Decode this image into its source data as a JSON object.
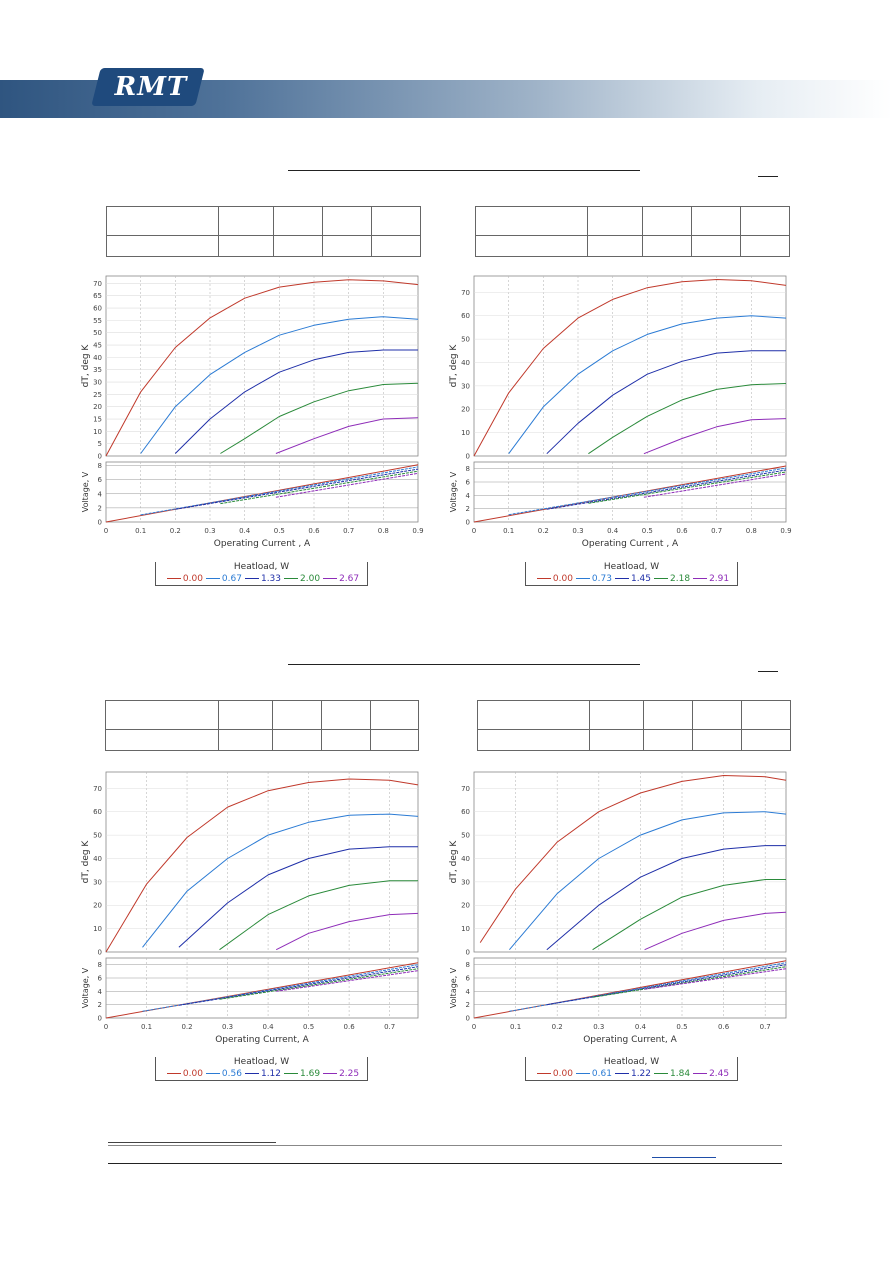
{
  "brand": {
    "logo_text": "RMT",
    "banner_color": "#2f5580"
  },
  "curve_colors": [
    "#c0392b",
    "#2b7bd4",
    "#1f2fa8",
    "#2a8a3a",
    "#8e2cb8"
  ],
  "panels": [
    {
      "id": "p1",
      "axis_label_x": "Operating Current , A",
      "axis_label_dt": "dT, deg K",
      "axis_label_v": "Voltage, V",
      "x_ticks": [
        "0",
        "0.1",
        "0.2",
        "0.3",
        "0.4",
        "0.5",
        "0.6",
        "0.7",
        "0.8",
        "0.9"
      ],
      "dt_ticks": [
        "0",
        "5",
        "10",
        "15",
        "20",
        "25",
        "30",
        "35",
        "40",
        "45",
        "50",
        "55",
        "60",
        "65",
        "70"
      ],
      "v_ticks": [
        "0",
        "2",
        "4",
        "6",
        "8"
      ],
      "legend_title": "Heatload, W",
      "legend": [
        "0.00",
        "0.67",
        "1.33",
        "2.00",
        "2.67"
      ]
    },
    {
      "id": "p2",
      "axis_label_x": "Operating Current , A",
      "axis_label_dt": "dT, deg K",
      "axis_label_v": "Voltage, V",
      "x_ticks": [
        "0",
        "0.1",
        "0.2",
        "0.3",
        "0.4",
        "0.5",
        "0.6",
        "0.7",
        "0.8",
        "0.9"
      ],
      "dt_ticks": [
        "0",
        "10",
        "20",
        "30",
        "40",
        "50",
        "60",
        "70"
      ],
      "v_ticks": [
        "0",
        "2",
        "4",
        "6",
        "8"
      ],
      "legend_title": "Heatload, W",
      "legend": [
        "0.00",
        "0.73",
        "1.45",
        "2.18",
        "2.91"
      ]
    },
    {
      "id": "p3",
      "axis_label_x": "Operating Current, A",
      "axis_label_dt": "dT, deg K",
      "axis_label_v": "Voltage, V",
      "x_ticks": [
        "0",
        "0.1",
        "0.2",
        "0.3",
        "0.4",
        "0.5",
        "0.6",
        "0.7"
      ],
      "dt_ticks": [
        "0",
        "10",
        "20",
        "30",
        "40",
        "50",
        "60",
        "70"
      ],
      "v_ticks": [
        "0",
        "2",
        "4",
        "6",
        "8"
      ],
      "legend_title": "Heatload, W",
      "legend": [
        "0.00",
        "0.56",
        "1.12",
        "1.69",
        "2.25"
      ]
    },
    {
      "id": "p4",
      "axis_label_x": "Operating Current, A",
      "axis_label_dt": "dT, deg K",
      "axis_label_v": "Voltage, V",
      "x_ticks": [
        "0",
        "0.1",
        "0.2",
        "0.3",
        "0.4",
        "0.5",
        "0.6",
        "0.7"
      ],
      "dt_ticks": [
        "0",
        "10",
        "20",
        "30",
        "40",
        "50",
        "60",
        "70"
      ],
      "v_ticks": [
        "0",
        "2",
        "4",
        "6",
        "8"
      ],
      "legend_title": "Heatload, W",
      "legend": [
        "0.00",
        "0.61",
        "1.22",
        "1.84",
        "2.45"
      ]
    }
  ],
  "chart_data": [
    {
      "type": "line",
      "xlim": [
        0,
        0.9
      ],
      "ylim_dt": [
        0,
        73
      ],
      "ylim_v": [
        0,
        8.5
      ],
      "xlabel": "Operating Current , A",
      "ylabel": "dT, deg K",
      "ylabel2": "Voltage, V",
      "legend_title": "Heatload, W",
      "series": [
        {
          "name": "0.00",
          "x0": 0.0,
          "dt": [
            [
              0,
              0
            ],
            [
              0.1,
              26
            ],
            [
              0.2,
              44
            ],
            [
              0.3,
              56
            ],
            [
              0.4,
              64
            ],
            [
              0.5,
              68.5
            ],
            [
              0.6,
              70.5
            ],
            [
              0.7,
              71.5
            ],
            [
              0.8,
              71
            ],
            [
              0.9,
              69.5
            ]
          ],
          "v": [
            [
              0,
              0
            ],
            [
              0.9,
              8.1
            ]
          ]
        },
        {
          "name": "0.67",
          "x0": 0.1,
          "dt": [
            [
              0.1,
              1
            ],
            [
              0.2,
              20
            ],
            [
              0.3,
              33
            ],
            [
              0.4,
              42
            ],
            [
              0.5,
              49
            ],
            [
              0.6,
              53
            ],
            [
              0.7,
              55.5
            ],
            [
              0.8,
              56.5
            ],
            [
              0.9,
              55.5
            ]
          ],
          "v": [
            [
              0.1,
              1
            ],
            [
              0.9,
              7.8
            ]
          ]
        },
        {
          "name": "1.33",
          "x0": 0.2,
          "dt": [
            [
              0.2,
              1
            ],
            [
              0.3,
              15
            ],
            [
              0.4,
              26
            ],
            [
              0.5,
              34
            ],
            [
              0.6,
              39
            ],
            [
              0.7,
              42
            ],
            [
              0.8,
              43
            ],
            [
              0.9,
              43
            ]
          ],
          "v": [
            [
              0.2,
              1.8
            ],
            [
              0.9,
              7.5
            ]
          ]
        },
        {
          "name": "2.00",
          "x0": 0.33,
          "dt": [
            [
              0.33,
              1
            ],
            [
              0.4,
              7
            ],
            [
              0.5,
              16
            ],
            [
              0.6,
              22
            ],
            [
              0.7,
              26.5
            ],
            [
              0.8,
              29
            ],
            [
              0.9,
              29.5
            ]
          ],
          "v": [
            [
              0.33,
              2.6
            ],
            [
              0.9,
              7.2
            ]
          ]
        },
        {
          "name": "2.67",
          "x0": 0.49,
          "dt": [
            [
              0.49,
              1
            ],
            [
              0.6,
              7
            ],
            [
              0.7,
              12
            ],
            [
              0.8,
              15
            ],
            [
              0.9,
              15.5
            ]
          ],
          "v": [
            [
              0.49,
              3.5
            ],
            [
              0.9,
              6.9
            ]
          ]
        }
      ]
    },
    {
      "type": "line",
      "xlim": [
        0,
        0.9
      ],
      "ylim_dt": [
        0,
        77
      ],
      "ylim_v": [
        0,
        9
      ],
      "xlabel": "Operating Current , A",
      "ylabel": "dT, deg K",
      "ylabel2": "Voltage, V",
      "legend_title": "Heatload, W",
      "series": [
        {
          "name": "0.00",
          "x0": 0.0,
          "dt": [
            [
              0,
              0
            ],
            [
              0.1,
              27
            ],
            [
              0.2,
              46
            ],
            [
              0.3,
              59
            ],
            [
              0.4,
              67
            ],
            [
              0.5,
              72
            ],
            [
              0.6,
              74.5
            ],
            [
              0.7,
              75.5
            ],
            [
              0.8,
              75
            ],
            [
              0.9,
              73
            ]
          ],
          "v": [
            [
              0,
              0
            ],
            [
              0.9,
              8.4
            ]
          ]
        },
        {
          "name": "0.73",
          "x0": 0.1,
          "dt": [
            [
              0.1,
              1
            ],
            [
              0.2,
              21
            ],
            [
              0.3,
              35
            ],
            [
              0.4,
              45
            ],
            [
              0.5,
              52
            ],
            [
              0.6,
              56.5
            ],
            [
              0.7,
              59
            ],
            [
              0.8,
              60
            ],
            [
              0.9,
              59
            ]
          ],
          "v": [
            [
              0.1,
              1.1
            ],
            [
              0.9,
              8.1
            ]
          ]
        },
        {
          "name": "1.45",
          "x0": 0.21,
          "dt": [
            [
              0.21,
              1
            ],
            [
              0.3,
              14
            ],
            [
              0.4,
              26
            ],
            [
              0.5,
              35
            ],
            [
              0.6,
              40.5
            ],
            [
              0.7,
              44
            ],
            [
              0.8,
              45
            ],
            [
              0.9,
              45
            ]
          ],
          "v": [
            [
              0.21,
              1.9
            ],
            [
              0.9,
              7.8
            ]
          ]
        },
        {
          "name": "2.18",
          "x0": 0.33,
          "dt": [
            [
              0.33,
              1
            ],
            [
              0.4,
              8
            ],
            [
              0.5,
              17
            ],
            [
              0.6,
              24
            ],
            [
              0.7,
              28.5
            ],
            [
              0.8,
              30.5
            ],
            [
              0.9,
              31
            ]
          ],
          "v": [
            [
              0.33,
              2.8
            ],
            [
              0.9,
              7.5
            ]
          ]
        },
        {
          "name": "2.91",
          "x0": 0.49,
          "dt": [
            [
              0.49,
              1
            ],
            [
              0.6,
              7.5
            ],
            [
              0.7,
              12.5
            ],
            [
              0.8,
              15.5
            ],
            [
              0.9,
              16
            ]
          ],
          "v": [
            [
              0.49,
              3.7
            ],
            [
              0.9,
              7.2
            ]
          ]
        }
      ]
    },
    {
      "type": "line",
      "xlim": [
        0,
        0.77
      ],
      "ylim_dt": [
        0,
        77
      ],
      "ylim_v": [
        0,
        9
      ],
      "xlabel": "Operating Current, A",
      "ylabel": "dT, deg K",
      "ylabel2": "Voltage, V",
      "legend_title": "Heatload, W",
      "series": [
        {
          "name": "0.00",
          "x0": 0.0,
          "dt": [
            [
              0,
              0
            ],
            [
              0.1,
              29
            ],
            [
              0.2,
              49
            ],
            [
              0.3,
              62
            ],
            [
              0.4,
              69
            ],
            [
              0.5,
              72.5
            ],
            [
              0.6,
              74
            ],
            [
              0.7,
              73.5
            ],
            [
              0.77,
              71.5
            ]
          ],
          "v": [
            [
              0,
              0
            ],
            [
              0.77,
              8.3
            ]
          ]
        },
        {
          "name": "0.56",
          "x0": 0.09,
          "dt": [
            [
              0.09,
              2
            ],
            [
              0.2,
              26
            ],
            [
              0.3,
              40
            ],
            [
              0.4,
              50
            ],
            [
              0.5,
              55.5
            ],
            [
              0.6,
              58.5
            ],
            [
              0.7,
              59
            ],
            [
              0.77,
              58
            ]
          ],
          "v": [
            [
              0.09,
              1
            ],
            [
              0.77,
              8
            ]
          ]
        },
        {
          "name": "1.12",
          "x0": 0.18,
          "dt": [
            [
              0.18,
              2
            ],
            [
              0.3,
              21
            ],
            [
              0.4,
              33
            ],
            [
              0.5,
              40
            ],
            [
              0.6,
              44
            ],
            [
              0.7,
              45
            ],
            [
              0.77,
              45
            ]
          ],
          "v": [
            [
              0.18,
              1.9
            ],
            [
              0.77,
              7.7
            ]
          ]
        },
        {
          "name": "1.69",
          "x0": 0.28,
          "dt": [
            [
              0.28,
              1
            ],
            [
              0.4,
              16
            ],
            [
              0.5,
              24
            ],
            [
              0.6,
              28.5
            ],
            [
              0.7,
              30.5
            ],
            [
              0.77,
              30.5
            ]
          ],
          "v": [
            [
              0.28,
              2.8
            ],
            [
              0.77,
              7.4
            ]
          ]
        },
        {
          "name": "2.25",
          "x0": 0.42,
          "dt": [
            [
              0.42,
              1
            ],
            [
              0.5,
              8
            ],
            [
              0.6,
              13
            ],
            [
              0.7,
              16
            ],
            [
              0.77,
              16.5
            ]
          ],
          "v": [
            [
              0.42,
              4
            ],
            [
              0.77,
              7.1
            ]
          ]
        }
      ]
    },
    {
      "type": "line",
      "xlim": [
        0,
        0.75
      ],
      "ylim_dt": [
        0,
        77
      ],
      "ylim_v": [
        0,
        9
      ],
      "xlabel": "Operating Current, A",
      "ylabel": "dT, deg K",
      "ylabel2": "Voltage, V",
      "legend_title": "Heatload, W",
      "series": [
        {
          "name": "0.00",
          "x0": 0.015,
          "dt": [
            [
              0.015,
              4
            ],
            [
              0.1,
              27
            ],
            [
              0.2,
              47
            ],
            [
              0.3,
              60
            ],
            [
              0.4,
              68
            ],
            [
              0.5,
              73
            ],
            [
              0.6,
              75.5
            ],
            [
              0.7,
              75
            ],
            [
              0.75,
              73.5
            ]
          ],
          "v": [
            [
              0,
              0
            ],
            [
              0.75,
              8.6
            ]
          ]
        },
        {
          "name": "0.61",
          "x0": 0.085,
          "dt": [
            [
              0.085,
              1
            ],
            [
              0.2,
              25
            ],
            [
              0.3,
              40
            ],
            [
              0.4,
              50
            ],
            [
              0.5,
              56.5
            ],
            [
              0.6,
              59.5
            ],
            [
              0.7,
              60
            ],
            [
              0.75,
              59
            ]
          ],
          "v": [
            [
              0.085,
              1
            ],
            [
              0.75,
              8.3
            ]
          ]
        },
        {
          "name": "1.22",
          "x0": 0.175,
          "dt": [
            [
              0.175,
              1
            ],
            [
              0.3,
              20
            ],
            [
              0.4,
              32
            ],
            [
              0.5,
              40
            ],
            [
              0.6,
              44
            ],
            [
              0.7,
              45.5
            ],
            [
              0.75,
              45.5
            ]
          ],
          "v": [
            [
              0.175,
              2
            ],
            [
              0.75,
              8
            ]
          ]
        },
        {
          "name": "1.84",
          "x0": 0.285,
          "dt": [
            [
              0.285,
              1
            ],
            [
              0.4,
              14
            ],
            [
              0.5,
              23.5
            ],
            [
              0.6,
              28.5
            ],
            [
              0.7,
              31
            ],
            [
              0.75,
              31
            ]
          ],
          "v": [
            [
              0.285,
              3.1
            ],
            [
              0.75,
              7.7
            ]
          ]
        },
        {
          "name": "2.45",
          "x0": 0.41,
          "dt": [
            [
              0.41,
              1
            ],
            [
              0.5,
              8
            ],
            [
              0.6,
              13.5
            ],
            [
              0.7,
              16.5
            ],
            [
              0.75,
              17
            ]
          ],
          "v": [
            [
              0.41,
              4.3
            ],
            [
              0.75,
              7.4
            ]
          ]
        }
      ]
    }
  ]
}
